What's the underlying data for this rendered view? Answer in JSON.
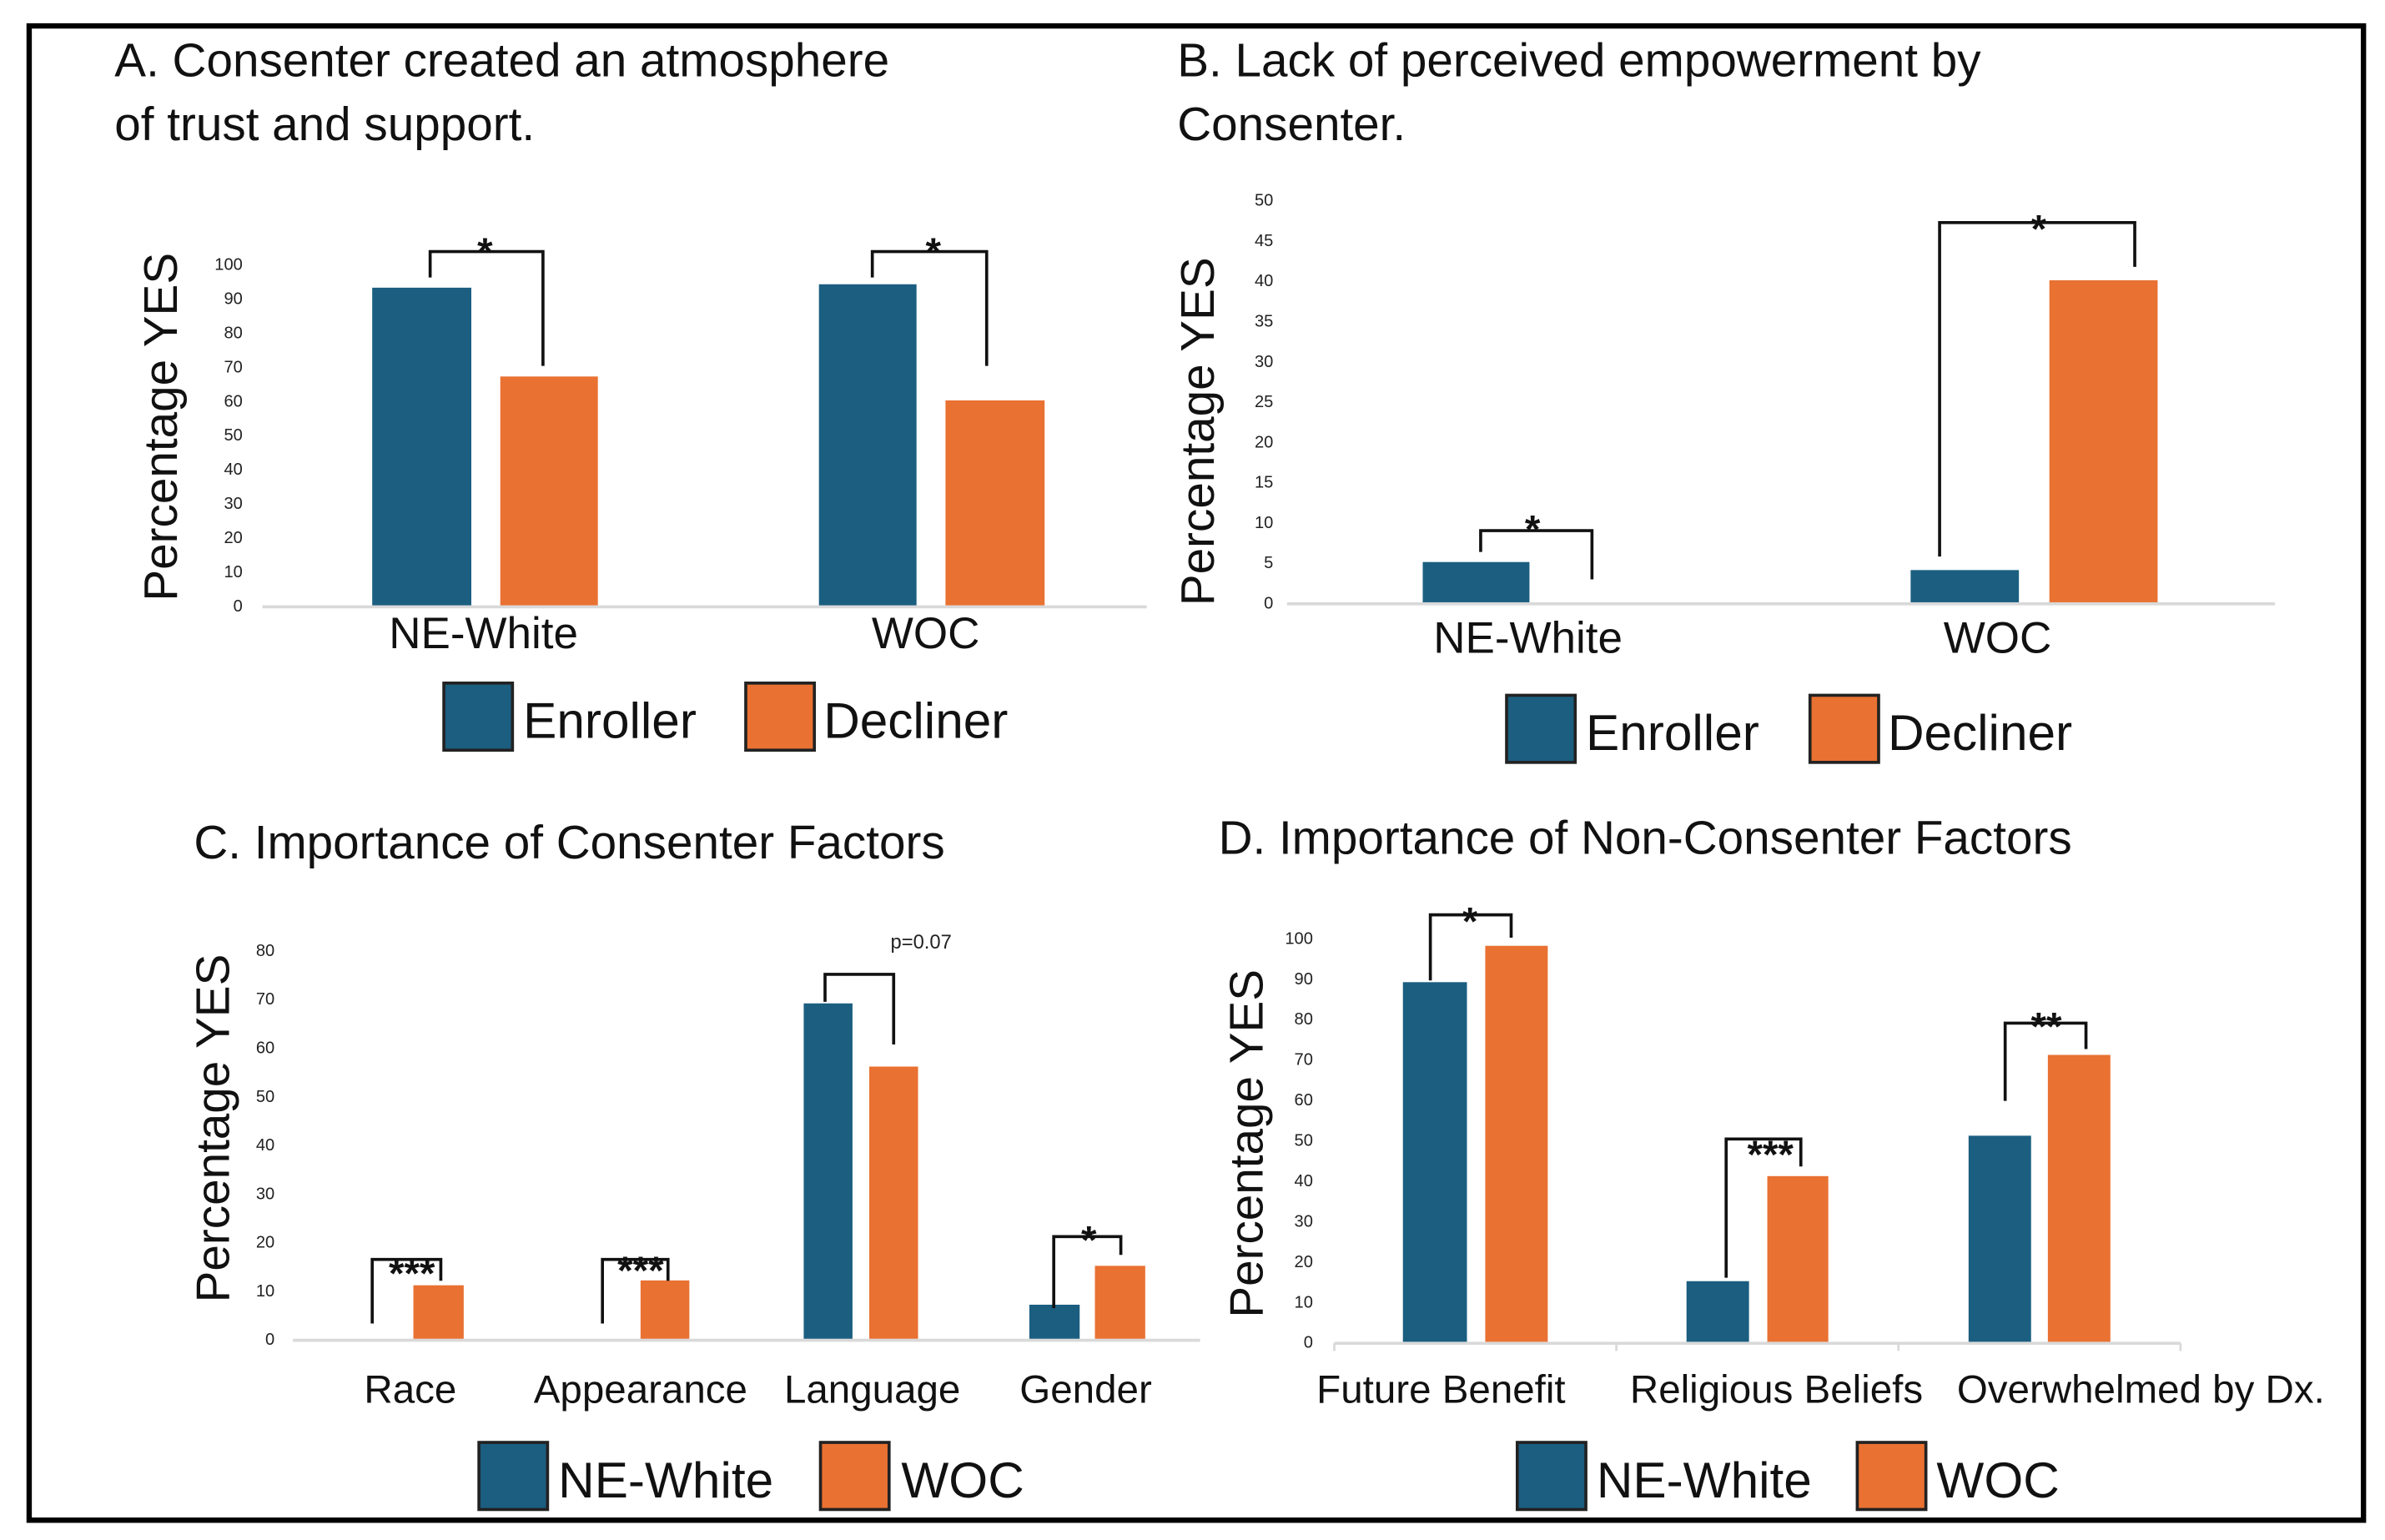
{
  "colors": {
    "blue": "#1b5e80",
    "orange": "#e97132"
  },
  "chart_data": [
    {
      "type": "bar",
      "panel": "A",
      "title": [
        "A. Consenter created an atmosphere",
        "of trust and support."
      ],
      "ylabel": "Percentage YES",
      "ylim": [
        0,
        100
      ],
      "yticks": [
        0,
        10,
        20,
        30,
        40,
        50,
        60,
        70,
        80,
        90,
        100
      ],
      "categories": [
        "NE-White",
        "WOC"
      ],
      "series": [
        {
          "name": "Enroller",
          "values": [
            93,
            94
          ]
        },
        {
          "name": "Decliner",
          "values": [
            67,
            60
          ]
        }
      ],
      "annotations": [
        "*",
        "*"
      ]
    },
    {
      "type": "bar",
      "panel": "B",
      "title": [
        "B. Lack of perceived empowerment by",
        "Consenter."
      ],
      "ylabel": "Percentage YES",
      "ylim": [
        0,
        50
      ],
      "yticks": [
        0,
        5,
        10,
        15,
        20,
        25,
        30,
        35,
        40,
        45,
        50
      ],
      "categories": [
        "NE-White",
        "WOC"
      ],
      "series": [
        {
          "name": "Enroller",
          "values": [
            5,
            4
          ]
        },
        {
          "name": "Decliner",
          "values": [
            0,
            40
          ]
        }
      ],
      "annotations": [
        "*",
        "*"
      ]
    },
    {
      "type": "bar",
      "panel": "C",
      "title": [
        "C. Importance of Consenter Factors"
      ],
      "ylabel": "Percentage YES",
      "ylim": [
        0,
        80
      ],
      "yticks": [
        0,
        10,
        20,
        30,
        40,
        50,
        60,
        70,
        80
      ],
      "categories": [
        "Race",
        "Appearance",
        "Language",
        "Gender"
      ],
      "series": [
        {
          "name": "NE-White",
          "values": [
            0,
            0,
            69,
            7
          ]
        },
        {
          "name": "WOC",
          "values": [
            11,
            12,
            56,
            15
          ]
        }
      ],
      "annotations": [
        "***",
        "***",
        "p=0.07",
        "*"
      ]
    },
    {
      "type": "bar",
      "panel": "D",
      "title": [
        "D. Importance of Non-Consenter Factors"
      ],
      "ylabel": "Percentage YES",
      "ylim": [
        0,
        100
      ],
      "yticks": [
        0,
        10,
        20,
        30,
        40,
        50,
        60,
        70,
        80,
        90,
        100
      ],
      "categories": [
        "Future Benefit",
        "Religious Beliefs",
        "Overwhelmed by Dx."
      ],
      "series": [
        {
          "name": "NE-White",
          "values": [
            89,
            15,
            51
          ]
        },
        {
          "name": "WOC",
          "values": [
            98,
            41,
            71
          ]
        }
      ],
      "annotations": [
        "*",
        "***",
        "**"
      ]
    }
  ]
}
